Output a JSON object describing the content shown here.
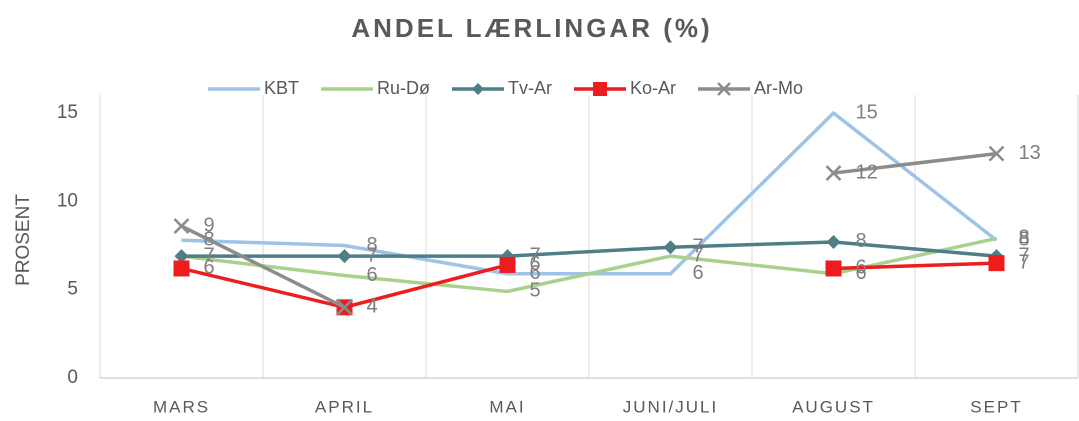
{
  "chart_data": {
    "type": "line",
    "title": "ANDEL LÆRLINGAR (%)",
    "y_label": "PROSENT",
    "categories": [
      "MARS",
      "APRIL",
      "MAI",
      "JUNI/JULI",
      "AUGUST",
      "SEPT"
    ],
    "ylim": [
      0,
      15
    ],
    "yticks": [
      0,
      5,
      10,
      15
    ],
    "grid": true,
    "legend": "top",
    "series": [
      {
        "name": "KBT",
        "color": "#9dc3e6",
        "marker": "none",
        "values": [
          7.8,
          7.5,
          5.9,
          5.9,
          15,
          7.8
        ],
        "value_labels": [
          "8",
          "8",
          "6",
          "6",
          "15",
          "8"
        ]
      },
      {
        "name": "Ru-Dø",
        "color": "#a9d18e",
        "marker": "none",
        "values": [
          6.9,
          5.8,
          4.9,
          6.9,
          5.9,
          7.9
        ],
        "value_labels": [
          "7",
          "6",
          "5",
          "7",
          "6",
          "8"
        ]
      },
      {
        "name": "Tv-Ar",
        "color": "#4e7f86",
        "marker": "diamond",
        "values": [
          6.9,
          6.9,
          6.9,
          7.4,
          7.7,
          6.9
        ],
        "value_labels": [
          "7",
          "7",
          "7",
          "7",
          "8",
          "7"
        ]
      },
      {
        "name": "Ko-Ar",
        "color": "#ee1c1c",
        "marker": "square",
        "values": [
          6.2,
          4.0,
          6.4,
          null,
          6.2,
          6.5
        ],
        "value_labels": [
          "6",
          "4",
          "6",
          null,
          "6",
          "7"
        ]
      },
      {
        "name": "Ar-Mo",
        "color": "#8c8c8c",
        "marker": "x",
        "values": [
          8.6,
          4.0,
          null,
          null,
          11.6,
          12.7
        ],
        "value_labels": [
          "9",
          "4",
          null,
          null,
          "12",
          "13"
        ]
      }
    ]
  }
}
